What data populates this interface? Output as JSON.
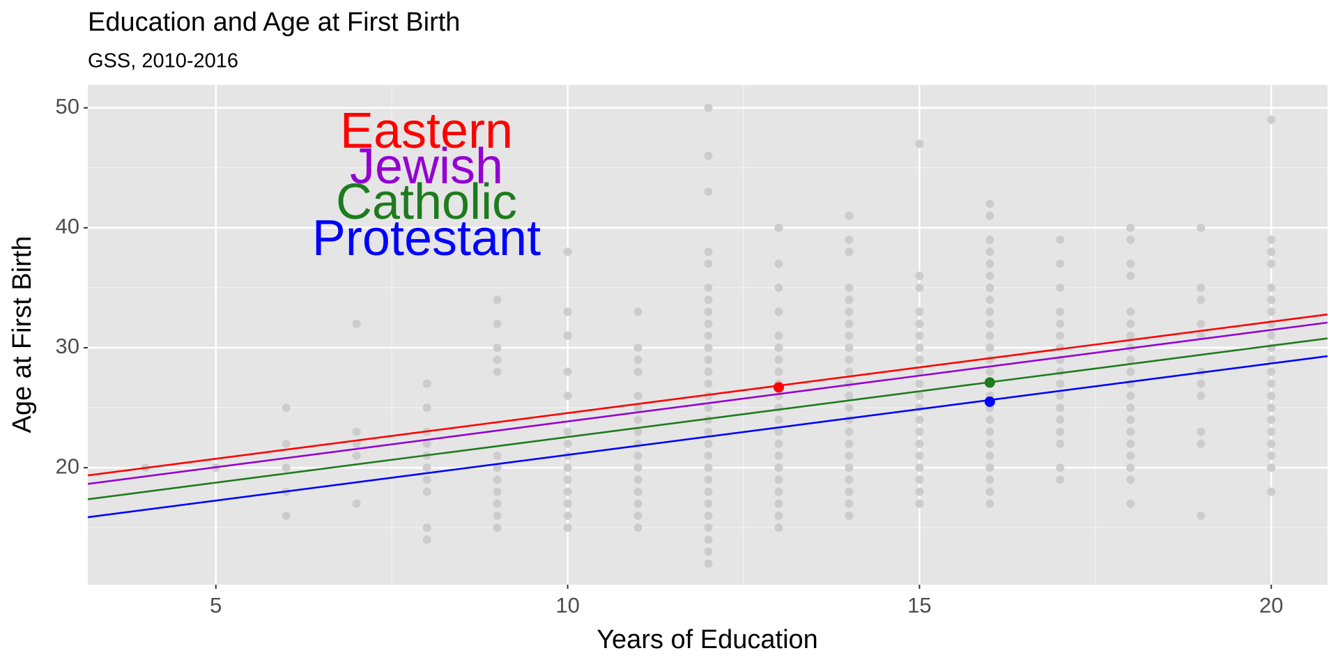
{
  "chart_data": {
    "type": "scatter",
    "title": "Education and Age at First Birth",
    "subtitle": "GSS, 2010-2016",
    "x_label": "Years of Education",
    "y_label": "Age at First Birth",
    "xlim": [
      3.18,
      20.8
    ],
    "ylim": [
      10.25,
      51.9
    ],
    "xticks": [
      5,
      10,
      15,
      20
    ],
    "yticks": [
      20,
      30,
      40,
      50
    ],
    "grid": true,
    "points": {
      "color": "#cccccc",
      "columns": [
        {
          "x": 4,
          "values": [
            20
          ]
        },
        {
          "x": 5,
          "values": [
            20
          ]
        },
        {
          "x": 6,
          "values": [
            25,
            22,
            20,
            18,
            16
          ]
        },
        {
          "x": 7,
          "values": [
            32,
            23,
            22,
            21,
            17
          ]
        },
        {
          "x": 8,
          "values": [
            27,
            25,
            23,
            22,
            21,
            20,
            19,
            18,
            15,
            14
          ]
        },
        {
          "x": 9,
          "values": [
            34,
            32,
            30,
            29,
            28,
            21,
            20,
            19,
            18,
            17,
            16,
            15
          ]
        },
        {
          "x": 10,
          "values": [
            38,
            33,
            31,
            28,
            26,
            23,
            22,
            21,
            20,
            19,
            18,
            17,
            16,
            15
          ]
        },
        {
          "x": 11,
          "values": [
            33,
            30,
            29,
            28,
            26,
            25,
            24,
            23,
            22,
            21,
            20,
            19,
            18,
            17,
            16,
            15
          ]
        },
        {
          "x": 12,
          "values": [
            50,
            46,
            43,
            38,
            37,
            35,
            34,
            33,
            32,
            31,
            30,
            29,
            28,
            27,
            26,
            25,
            24,
            23,
            22,
            21,
            20,
            19,
            18,
            17,
            16,
            15,
            14,
            13,
            12
          ]
        },
        {
          "x": 13,
          "values": [
            40,
            37,
            35,
            33,
            31,
            30,
            29,
            28,
            27,
            26,
            25,
            24,
            23,
            22,
            21,
            20,
            19,
            18,
            17,
            16,
            15
          ]
        },
        {
          "x": 14,
          "values": [
            41,
            39,
            38,
            35,
            34,
            33,
            32,
            31,
            30,
            29,
            28,
            27,
            26,
            25,
            24,
            23,
            22,
            21,
            20,
            19,
            18,
            17,
            16
          ]
        },
        {
          "x": 15,
          "values": [
            47,
            36,
            35,
            33,
            32,
            31,
            30,
            29,
            28,
            27,
            26,
            25,
            24,
            23,
            22,
            21,
            20,
            19,
            18,
            17
          ]
        },
        {
          "x": 16,
          "values": [
            42,
            41,
            39,
            38,
            37,
            36,
            35,
            34,
            33,
            32,
            31,
            30,
            29,
            28,
            27,
            26,
            25,
            24,
            23,
            22,
            21,
            20,
            19,
            18,
            17
          ]
        },
        {
          "x": 17,
          "values": [
            39,
            37,
            35,
            33,
            32,
            31,
            30,
            29,
            28,
            27,
            26,
            25,
            24,
            23,
            22,
            20,
            19
          ]
        },
        {
          "x": 18,
          "values": [
            40,
            39,
            37,
            36,
            33,
            32,
            31,
            30,
            29,
            28,
            27,
            26,
            25,
            24,
            23,
            22,
            21,
            20,
            19,
            17
          ]
        },
        {
          "x": 19,
          "values": [
            40,
            35,
            34,
            32,
            31,
            28,
            27,
            26,
            23,
            22,
            16
          ]
        },
        {
          "x": 20,
          "values": [
            49,
            39,
            38,
            37,
            35,
            34,
            33,
            32,
            31,
            30,
            29,
            28,
            27,
            26,
            25,
            24,
            23,
            22,
            21,
            20,
            18
          ]
        }
      ]
    },
    "series": [
      {
        "name": "Eastern",
        "color": "#ff0000",
        "x": [
          3.18,
          20.8
        ],
        "values": [
          19.36,
          32.78
        ],
        "point": {
          "x": 13,
          "value": 26.7
        }
      },
      {
        "name": "Jewish",
        "color": "#9400d3",
        "x": [
          3.18,
          20.8
        ],
        "values": [
          18.65,
          32.1
        ]
      },
      {
        "name": "Catholic",
        "color": "#1e7b1e",
        "x": [
          3.18,
          20.8
        ],
        "values": [
          17.37,
          30.78
        ],
        "point": {
          "x": 16,
          "value": 27.1
        }
      },
      {
        "name": "Protestant",
        "color": "#0000ff",
        "x": [
          3.18,
          20.8
        ],
        "values": [
          15.87,
          29.3
        ],
        "point": {
          "x": 16,
          "value": 25.5
        }
      }
    ]
  }
}
